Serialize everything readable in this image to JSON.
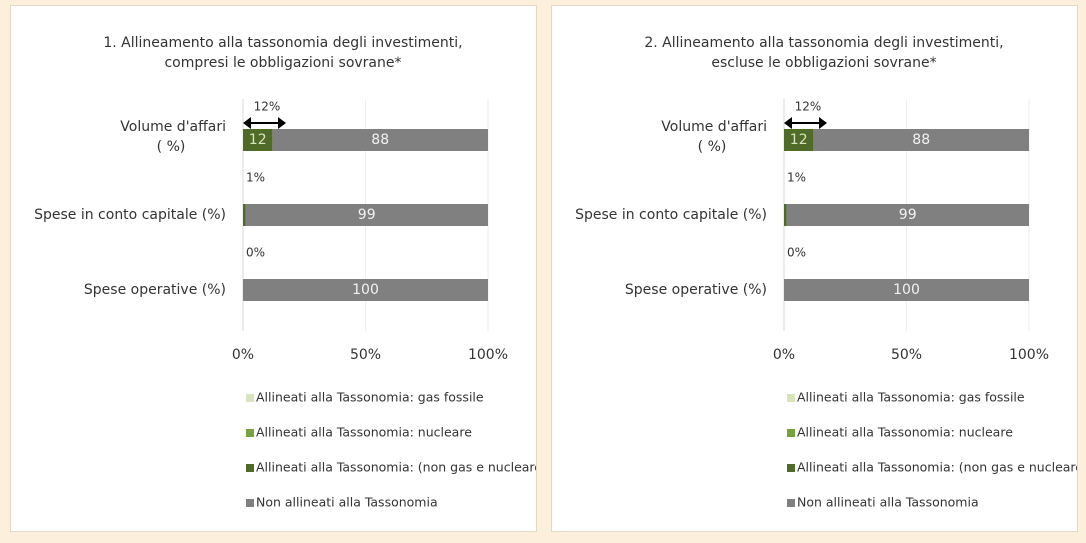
{
  "chart_data": [
    {
      "type": "bar",
      "title": [
        "1. Allineamento alla tassonomia degli investimenti,",
        "compresi le obbligazioni sovrane*"
      ],
      "categories": [
        [
          "Volume d'affari",
          "( %)"
        ],
        [
          "Spese in conto capitale (%)"
        ],
        [
          "Spese operative (%)"
        ]
      ],
      "annotations": [
        "12%",
        "1%",
        "0%"
      ],
      "series": [
        {
          "name": "Allineati alla Tassonomia: gas fossile",
          "color": "#d8e4bc",
          "values": [
            0,
            0,
            0
          ]
        },
        {
          "name": "Allineati alla Tassonomia: nucleare",
          "color": "#77a33c",
          "values": [
            0,
            0,
            0
          ]
        },
        {
          "name": "Allineati alla Tassonomia: (non gas e nucleare)",
          "color": "#4f6b28",
          "values": [
            12,
            1,
            0
          ]
        },
        {
          "name": "Non allineati alla Tassonomia",
          "color": "#808080",
          "values": [
            88,
            99,
            100
          ]
        }
      ],
      "xlim": [
        0,
        100
      ],
      "xticks": [
        {
          "value": 0,
          "label": "0%"
        },
        {
          "value": 50,
          "label": "50%"
        },
        {
          "value": 100,
          "label": "100%"
        }
      ],
      "grid": true,
      "stacked": true,
      "orientation": "horizontal"
    },
    {
      "type": "bar",
      "title": [
        "2. Allineamento alla tassonomia degli investimenti,",
        "escluse le obbligazioni sovrane*"
      ],
      "categories": [
        [
          "Volume d'affari",
          "( %)"
        ],
        [
          "Spese in conto capitale (%)"
        ],
        [
          "Spese operative (%)"
        ]
      ],
      "annotations": [
        "12%",
        "1%",
        "0%"
      ],
      "series": [
        {
          "name": "Allineati alla Tassonomia: gas fossile",
          "color": "#d8e4bc",
          "values": [
            0,
            0,
            0
          ]
        },
        {
          "name": "Allineati alla Tassonomia: nucleare",
          "color": "#77a33c",
          "values": [
            0,
            0,
            0
          ]
        },
        {
          "name": "Allineati alla Tassonomia: (non gas e nucleare)",
          "color": "#4f6b28",
          "values": [
            12,
            1,
            0
          ]
        },
        {
          "name": "Non allineati alla Tassonomia",
          "color": "#808080",
          "values": [
            88,
            99,
            100
          ]
        }
      ],
      "xlim": [
        0,
        100
      ],
      "xticks": [
        {
          "value": 0,
          "label": "0%"
        },
        {
          "value": 50,
          "label": "50%"
        },
        {
          "value": 100,
          "label": "100%"
        }
      ],
      "grid": true,
      "stacked": true,
      "orientation": "horizontal"
    }
  ]
}
